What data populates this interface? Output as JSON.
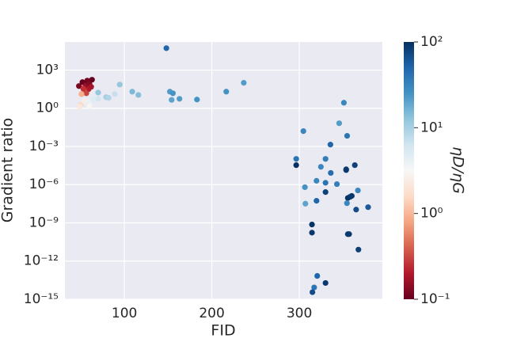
{
  "chart_data": {
    "type": "scatter",
    "x_label": "FID",
    "y_label": "Gradient ratio",
    "colorbar_label": "ηD/ηG",
    "xlim": [
      32,
      395
    ],
    "xticks": [
      100,
      200,
      300
    ],
    "ylim": [
      1e-15,
      160000
    ],
    "log_y": true,
    "grid": true,
    "yticks": [
      {
        "value": 1e-15,
        "label": "10⁻¹⁵"
      },
      {
        "value": 1e-12,
        "label": "10⁻¹²"
      },
      {
        "value": 1e-09,
        "label": "10⁻⁹"
      },
      {
        "value": 1e-06,
        "label": "10⁻⁶"
      },
      {
        "value": 0.001,
        "label": "10⁻³"
      },
      {
        "value": 1,
        "label": "10⁰"
      },
      {
        "value": 1000,
        "label": "10³"
      }
    ],
    "colormap": "RdBu",
    "clim": [
      0.1,
      100
    ],
    "cticks": [
      {
        "value": 0.1,
        "label": "10⁻¹"
      },
      {
        "value": 1,
        "label": "10⁰"
      },
      {
        "value": 10,
        "label": "10¹"
      },
      {
        "value": 100,
        "label": "10²"
      }
    ],
    "x": [
      48,
      52,
      55.6,
      57.5,
      60,
      63,
      59,
      54,
      51,
      56.5,
      62,
      53,
      50,
      51,
      54.7,
      60,
      49,
      60,
      64,
      70,
      70,
      79,
      82,
      89,
      94.7,
      109,
      116,
      148,
      152,
      155.5,
      154,
      163,
      183,
      216.5,
      236.5,
      351,
      345.6,
      354.7,
      335.6,
      304.7,
      296.5,
      296.5,
      330,
      324.7,
      336,
      363.5,
      353.6,
      353.6,
      319.7,
      330,
      330,
      343,
      367,
      306.4,
      358,
      355.5,
      360,
      319.7,
      354.5,
      307,
      365,
      378.7,
      314.5,
      314.5,
      355.5,
      357,
      367.6,
      320.5,
      330,
      317,
      315
    ],
    "y": [
      55,
      112,
      63,
      148,
      85,
      174,
      31,
      23,
      13,
      15,
      48,
      35,
      1.8,
      13,
      3.6,
      1.5,
      1.3,
      3.6,
      5.2,
      5.6,
      17,
      7.4,
      6.5,
      13,
      72,
      20,
      11,
      52000,
      20,
      15,
      4.5,
      5.5,
      4.8,
      20,
      100,
      2.7,
      0.066,
      0.0068,
      0.0014,
      0.016,
      0.000105,
      3.4e-05,
      0.000105,
      2.5e-05,
      8.3e-06,
      3.4e-05,
      1.6e-05,
      1.4e-05,
      2e-06,
      1.4e-06,
      2.6e-07,
      1.1e-06,
      3.5e-07,
      6.3e-07,
      1.1e-07,
      9e-08,
      1.3e-07,
      5.4e-08,
      3.5e-08,
      3.2e-08,
      1.1e-08,
      1.7e-08,
      7.4e-10,
      1.7e-10,
      1.3e-10,
      1.3e-10,
      7.9e-12,
      6.8e-14,
      1.9e-14,
      8.5e-15,
      3.6e-15
    ],
    "c": [
      0.12,
      0.1,
      0.15,
      0.11,
      0.13,
      0.1,
      0.2,
      0.35,
      0.6,
      0.3,
      0.18,
      0.25,
      1.5,
      0.9,
      2.5,
      3,
      2.2,
      4,
      5,
      6,
      12,
      10,
      9,
      7,
      12,
      15,
      14,
      50,
      22,
      25,
      20,
      22,
      25,
      25,
      22,
      30,
      22,
      40,
      50,
      30,
      40,
      100,
      35,
      30,
      45,
      80,
      90,
      90,
      30,
      40,
      80,
      35,
      30,
      25,
      85,
      95,
      90,
      50,
      30,
      20,
      70,
      60,
      95,
      90,
      85,
      90,
      85,
      50,
      90,
      40,
      70
    ]
  }
}
